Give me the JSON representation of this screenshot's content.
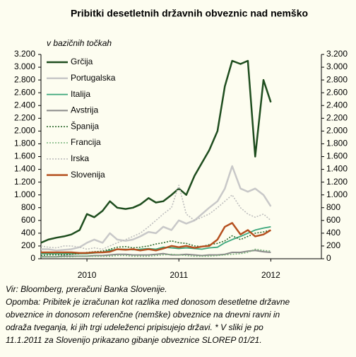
{
  "chart_data": {
    "type": "line",
    "title": "Pribitki desetletnih državnih obveznic nad nemško",
    "subtitle": "v bazičnih točkah",
    "x": [
      2009.5,
      2009.58,
      2009.67,
      2009.75,
      2009.83,
      2009.92,
      2010,
      2010.08,
      2010.17,
      2010.25,
      2010.33,
      2010.42,
      2010.5,
      2010.58,
      2010.67,
      2010.75,
      2010.83,
      2010.92,
      2011,
      2011.08,
      2011.17,
      2011.25,
      2011.33,
      2011.42,
      2011.5,
      2011.58,
      2011.67,
      2011.75,
      2011.83,
      2011.92,
      2012
    ],
    "xlim": [
      2009.5,
      2012.55
    ],
    "xticks": [
      2010,
      2011,
      2012
    ],
    "ylim": [
      0,
      3200
    ],
    "yticks": [
      0,
      200,
      400,
      600,
      800,
      {
        "value": 1000,
        "label": "1.000"
      },
      {
        "value": 1200,
        "label": "1.200"
      },
      {
        "value": 1400,
        "label": "1.400"
      },
      {
        "value": 1600,
        "label": "1.600"
      },
      {
        "value": 1800,
        "label": "1.800"
      },
      {
        "value": 2000,
        "label": "2.000"
      },
      {
        "value": 2200,
        "label": "2.200"
      },
      {
        "value": 2400,
        "label": "2.400"
      },
      {
        "value": 2600,
        "label": "2.600"
      },
      {
        "value": 2800,
        "label": "2.800"
      },
      {
        "value": 3000,
        "label": "3.000"
      },
      {
        "value": 3200,
        "label": "3.200"
      }
    ],
    "y2lim": [
      0,
      3200
    ],
    "y2ticks": [
      0,
      200,
      400,
      600,
      800,
      {
        "value": 1000,
        "label": "1.000"
      },
      {
        "value": 1200,
        "label": "1.200"
      },
      {
        "value": 1400,
        "label": "1.400"
      },
      {
        "value": 1600,
        "label": "1.600"
      },
      {
        "value": 1800,
        "label": "1.800"
      },
      {
        "value": 2000,
        "label": "2.000"
      },
      {
        "value": 2200,
        "label": "2.200"
      },
      {
        "value": 2400,
        "label": "2.400"
      },
      {
        "value": 2600,
        "label": "2.600"
      },
      {
        "value": 2800,
        "label": "2.800"
      },
      {
        "value": 3000,
        "label": "3.000"
      },
      {
        "value": 3200,
        "label": "3.200"
      }
    ],
    "legend": "upper left",
    "series": [
      {
        "name": "Grčija",
        "color": "#1e4d1e",
        "style": "solid",
        "line_width": 2.5,
        "values": [
          250,
          300,
          330,
          350,
          380,
          450,
          700,
          650,
          750,
          900,
          800,
          780,
          800,
          850,
          950,
          880,
          900,
          1000,
          1100,
          1000,
          1300,
          1500,
          1700,
          2000,
          2700,
          3100,
          3050,
          3100,
          1600,
          2800,
          2450
        ]
      },
      {
        "name": "Portugalska",
        "color": "#c8c8c8",
        "style": "solid",
        "line_width": 2.5,
        "values": [
          150,
          150,
          130,
          140,
          150,
          180,
          250,
          300,
          250,
          400,
          300,
          280,
          300,
          350,
          420,
          400,
          500,
          450,
          600,
          550,
          600,
          700,
          800,
          900,
          1100,
          1450,
          1100,
          1050,
          1100,
          1000,
          820
        ]
      },
      {
        "name": "Italija",
        "color": "#3aa67a",
        "style": "solid",
        "line_width": 1.8,
        "values": [
          80,
          80,
          80,
          80,
          75,
          80,
          80,
          90,
          100,
          130,
          150,
          150,
          140,
          150,
          160,
          150,
          180,
          170,
          160,
          170,
          160,
          150,
          170,
          180,
          250,
          300,
          350,
          400,
          450,
          480,
          500
        ]
      },
      {
        "name": "Avstrija",
        "color": "#8a8a8a",
        "style": "solid",
        "line_width": 2,
        "values": [
          30,
          30,
          30,
          40,
          40,
          40,
          40,
          50,
          50,
          60,
          70,
          70,
          60,
          60,
          60,
          70,
          80,
          60,
          60,
          70,
          60,
          50,
          60,
          60,
          70,
          100,
          100,
          120,
          130,
          110,
          100
        ]
      },
      {
        "name": "Španija",
        "color": "#2e6b2e",
        "style": "dotted",
        "line_width": 1.6,
        "values": [
          50,
          60,
          60,
          60,
          70,
          80,
          100,
          110,
          120,
          150,
          180,
          190,
          170,
          180,
          200,
          230,
          250,
          280,
          250,
          240,
          200,
          190,
          220,
          240,
          280,
          360,
          300,
          350,
          400,
          420,
          450
        ]
      },
      {
        "name": "Francija",
        "color": "#7ab37a",
        "style": "dotted",
        "line_width": 1.6,
        "values": [
          30,
          30,
          30,
          30,
          30,
          40,
          40,
          40,
          40,
          40,
          50,
          50,
          40,
          40,
          40,
          50,
          60,
          70,
          60,
          50,
          40,
          40,
          40,
          50,
          60,
          70,
          80,
          100,
          150,
          130,
          120
        ]
      },
      {
        "name": "Irska",
        "color": "#bdbdbd",
        "style": "dotted",
        "line_width": 1.6,
        "values": [
          200,
          180,
          170,
          200,
          200,
          180,
          150,
          170,
          150,
          200,
          250,
          300,
          350,
          400,
          500,
          600,
          700,
          800,
          1150,
          700,
          600,
          650,
          700,
          800,
          900,
          1000,
          800,
          700,
          650,
          700,
          600
        ]
      },
      {
        "name": "Slovenija",
        "color": "#b5501f",
        "style": "solid",
        "line_width": 2.5,
        "values": [
          100,
          100,
          100,
          100,
          100,
          90,
          90,
          100,
          100,
          110,
          150,
          140,
          150,
          130,
          150,
          130,
          160,
          200,
          180,
          200,
          170,
          190,
          200,
          300,
          500,
          560,
          380,
          450,
          350,
          380,
          450
        ]
      }
    ],
    "notes": [
      "Vir: Bloomberg, preračuni Banka Slovenije.",
      "Opomba: Pribitek je izračunan kot razlika med donosom desetletne državne",
      "obveznice in donosom referenčne (nemške) obveznice na dnevni ravni in",
      "odraža tveganja, ki jih trgi udeleženci pripisujejo državi. * V sliki je po",
      "11.1.2011 za Slovenijo prikazano gibanje obveznice SLOREP 01/21."
    ]
  }
}
